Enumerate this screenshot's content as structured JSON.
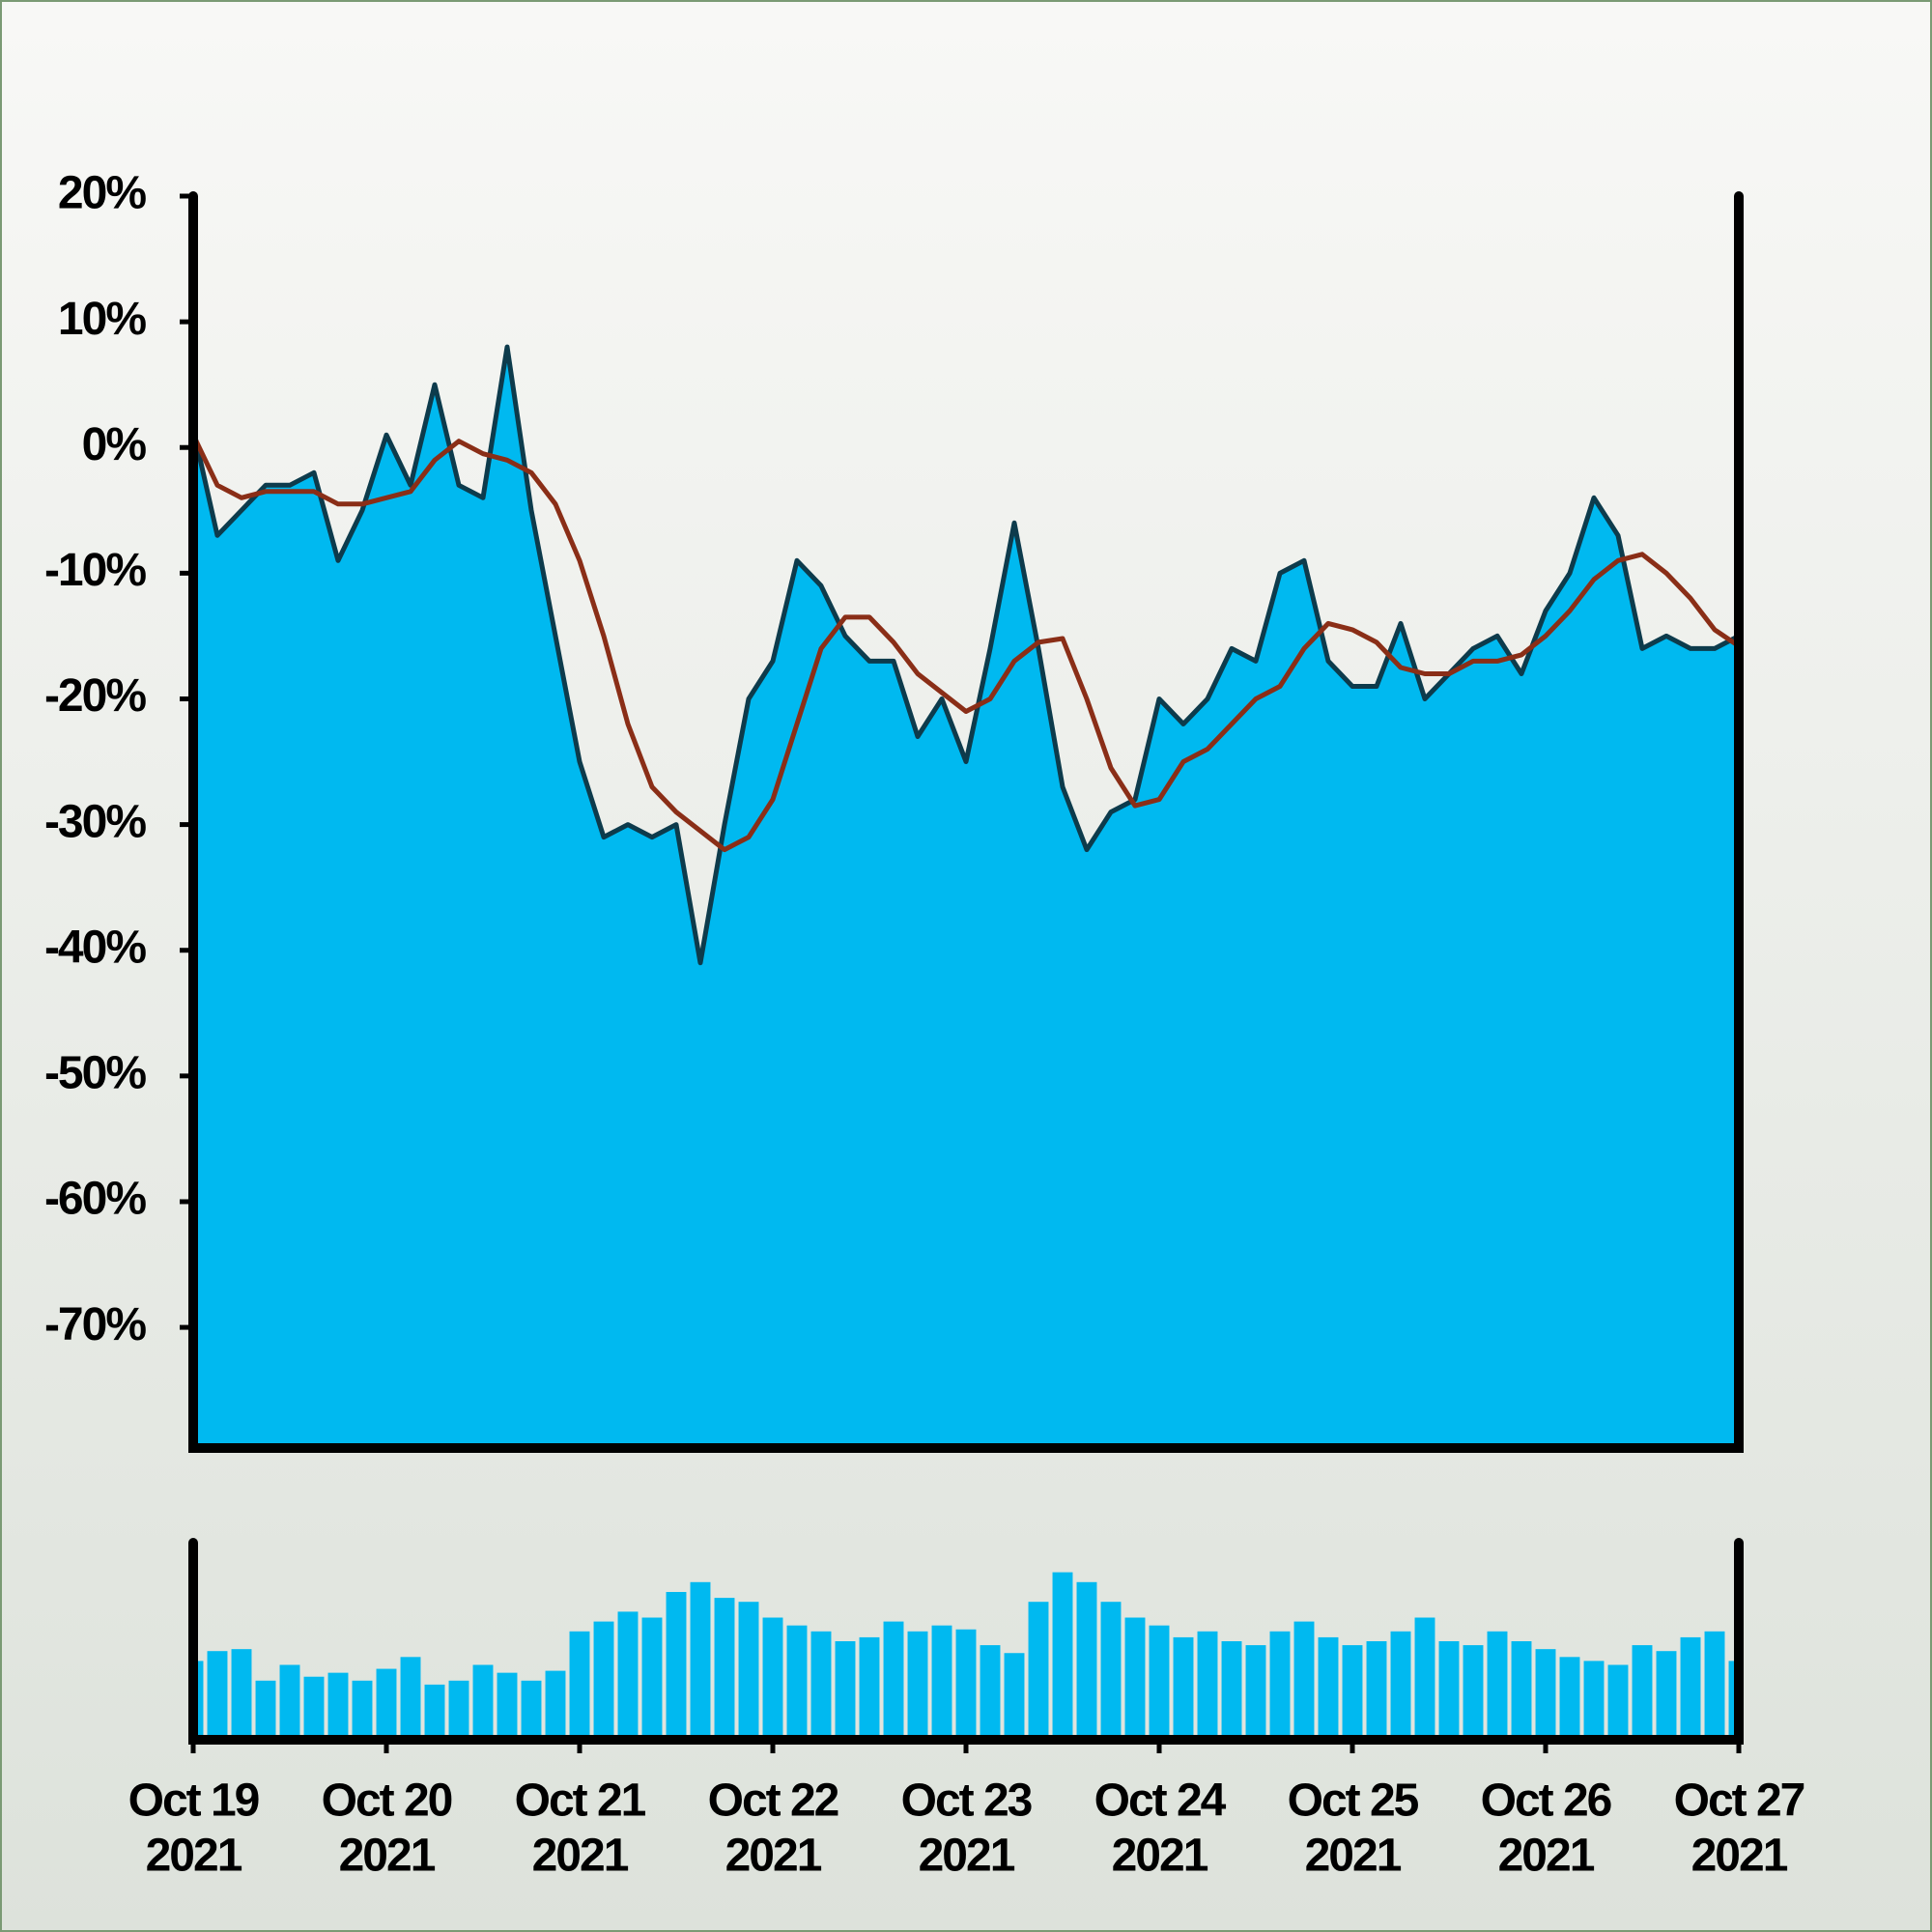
{
  "chart_data": [
    {
      "type": "area",
      "x": [
        0,
        0.125,
        0.25,
        0.375,
        0.5,
        0.625,
        0.75,
        0.875,
        1,
        1.125,
        1.25,
        1.375,
        1.5,
        1.625,
        1.75,
        1.875,
        2,
        2.125,
        2.25,
        2.375,
        2.5,
        2.625,
        2.75,
        2.875,
        3,
        3.125,
        3.25,
        3.375,
        3.5,
        3.625,
        3.75,
        3.875,
        4,
        4.125,
        4.25,
        4.375,
        4.5,
        4.625,
        4.75,
        4.875,
        5,
        5.125,
        5.25,
        5.375,
        5.5,
        5.625,
        5.75,
        5.875,
        6,
        6.125,
        6.25,
        6.375,
        6.5,
        6.625,
        6.75,
        6.875,
        7,
        7.125,
        7.25,
        7.375,
        7.5,
        7.625,
        7.75,
        7.875,
        8
      ],
      "xlim": [
        0,
        8
      ],
      "ylim": [
        -79.6,
        20
      ],
      "yticks": [
        {
          "value": 20,
          "label": "20%"
        },
        {
          "value": 10,
          "label": "10%"
        },
        {
          "value": 0,
          "label": "0%"
        },
        {
          "value": -10,
          "label": "-10%"
        },
        {
          "value": -20,
          "label": "-20%"
        },
        {
          "value": -30,
          "label": "-30%"
        },
        {
          "value": -40,
          "label": "-40%"
        },
        {
          "value": -50,
          "label": "-50%"
        },
        {
          "value": -60,
          "label": "-60%"
        },
        {
          "value": -70,
          "label": "-70%"
        }
      ],
      "series": [
        {
          "type": "area",
          "color": "#00b9f0",
          "line_color": "#0d3b4c",
          "values": [
            1.5,
            -7,
            -5,
            -3,
            -3,
            -2,
            -9,
            -5,
            1,
            -3,
            5,
            -3,
            -4,
            8,
            -5,
            -15,
            -25,
            -31,
            -30,
            -31,
            -30,
            -41,
            -30,
            -20,
            -17,
            -9,
            -11,
            -15,
            -17,
            -17,
            -23,
            -20,
            -25,
            -16,
            -6,
            -16,
            -27,
            -32,
            -29,
            -28,
            -20,
            -22,
            -20,
            -16,
            -17,
            -10,
            -9,
            -17,
            -19,
            -19,
            -14,
            -20,
            -18,
            -16,
            -15,
            -18,
            -13,
            -10,
            -4,
            -7,
            -16,
            -15,
            -16,
            -16,
            -15
          ]
        },
        {
          "type": "line",
          "color": "#8a2e17",
          "values": [
            1,
            -3,
            -4,
            -3.5,
            -3.5,
            -3.5,
            -4.5,
            -4.5,
            -4,
            -3.5,
            -1,
            0.5,
            -0.5,
            -1,
            -2,
            -4.5,
            -9,
            -15,
            -22,
            -27,
            -29,
            -30.5,
            -32,
            -31,
            -28,
            -22,
            -16,
            -13.5,
            -13.5,
            -15.5,
            -18,
            -19.5,
            -21,
            -20,
            -17,
            -15.5,
            -15.2,
            -20,
            -25.5,
            -28.5,
            -28,
            -25,
            -24,
            -22,
            -20,
            -19,
            -16,
            -14,
            -14.5,
            -15.5,
            -17.5,
            -18,
            -18,
            -17,
            -17,
            -16.5,
            -15,
            -13,
            -10.5,
            -9,
            -8.5,
            -10,
            -12,
            -14.5,
            -15.8
          ]
        }
      ]
    },
    {
      "type": "bar",
      "x": [
        0,
        0.125,
        0.25,
        0.375,
        0.5,
        0.625,
        0.75,
        0.875,
        1,
        1.125,
        1.25,
        1.375,
        1.5,
        1.625,
        1.75,
        1.875,
        2,
        2.125,
        2.25,
        2.375,
        2.5,
        2.625,
        2.75,
        2.875,
        3,
        3.125,
        3.25,
        3.375,
        3.5,
        3.625,
        3.75,
        3.875,
        4,
        4.125,
        4.25,
        4.375,
        4.5,
        4.625,
        4.75,
        4.875,
        5,
        5.125,
        5.25,
        5.375,
        5.5,
        5.625,
        5.75,
        5.875,
        6,
        6.125,
        6.25,
        6.375,
        6.5,
        6.625,
        6.75,
        6.875,
        7,
        7.125,
        7.25,
        7.375,
        7.5,
        7.625,
        7.75,
        7.875,
        8
      ],
      "xlim": [
        0,
        8
      ],
      "ylim": [
        0,
        100
      ],
      "xticks": [
        {
          "value": 0,
          "label": [
            "Oct 19",
            "2021"
          ]
        },
        {
          "value": 1,
          "label": [
            "Oct 20",
            "2021"
          ]
        },
        {
          "value": 2,
          "label": [
            "Oct 21",
            "2021"
          ]
        },
        {
          "value": 3,
          "label": [
            "Oct 22",
            "2021"
          ]
        },
        {
          "value": 4,
          "label": [
            "Oct 23",
            "2021"
          ]
        },
        {
          "value": 5,
          "label": [
            "Oct 24",
            "2021"
          ]
        },
        {
          "value": 6,
          "label": [
            "Oct 25",
            "2021"
          ]
        },
        {
          "value": 7,
          "label": [
            "Oct 26",
            "2021"
          ]
        },
        {
          "value": 8,
          "label": [
            "Oct 27",
            "2021"
          ]
        }
      ],
      "color": "#00b9f0",
      "values": [
        40,
        45,
        46,
        30,
        38,
        32,
        34,
        30,
        36,
        42,
        28,
        30,
        38,
        34,
        30,
        35,
        55,
        60,
        65,
        62,
        75,
        80,
        72,
        70,
        62,
        58,
        55,
        50,
        52,
        60,
        55,
        58,
        56,
        48,
        44,
        70,
        85,
        80,
        70,
        62,
        58,
        52,
        55,
        50,
        48,
        55,
        60,
        52,
        48,
        50,
        55,
        62,
        50,
        48,
        55,
        50,
        46,
        42,
        40,
        38,
        48,
        45,
        52,
        55,
        40
      ]
    }
  ]
}
